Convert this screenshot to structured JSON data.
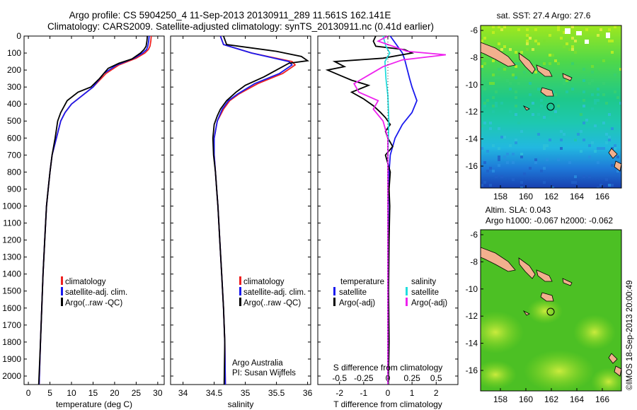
{
  "header": {
    "title_line1": "Argo profile: CS 5904250_4 11-Sep-2013 20130911_289 11.561S 162.141E",
    "title_line2": "Climatology: CARS2009. Satellite-adjusted climatology: synTS_20130911.nc (0.41d earlier)"
  },
  "colors": {
    "climatology": "#ee2222",
    "satellite": "#1a1aee",
    "argo": "#000000",
    "sat_salinity": "#22dddd",
    "argo_salinity": "#ee22ee",
    "land": "#f2b08e"
  },
  "chart_data": [
    {
      "id": "temperature",
      "type": "line",
      "xlabel": "temperature (deg C)",
      "xticks": [
        0,
        5,
        10,
        15,
        20,
        25,
        30
      ],
      "xlim": [
        -1,
        31.5
      ],
      "yticks": [
        0,
        100,
        200,
        300,
        400,
        500,
        600,
        700,
        800,
        900,
        1000,
        1100,
        1200,
        1300,
        1400,
        1500,
        1600,
        1700,
        1800,
        1900,
        2000
      ],
      "ylim": [
        0,
        2050
      ],
      "legend": [
        "climatology",
        "satellite-adj. clim.",
        "Argo(..raw -QC)"
      ],
      "series": [
        {
          "name": "climatology",
          "color": "#ee2222",
          "points": [
            [
              28.5,
              0
            ],
            [
              28.4,
              30
            ],
            [
              28.2,
              60
            ],
            [
              27.8,
              80
            ],
            [
              27,
              100
            ],
            [
              25,
              130
            ],
            [
              21,
              170
            ],
            [
              18,
              220
            ],
            [
              15,
              300
            ],
            [
              12.5,
              350
            ],
            [
              10,
              400
            ],
            [
              8.5,
              450
            ],
            [
              7.5,
              500
            ],
            [
              6.5,
              600
            ],
            [
              5.5,
              700
            ],
            [
              5,
              800
            ],
            [
              4.6,
              900
            ],
            [
              4.2,
              1000
            ],
            [
              3.8,
              1200
            ],
            [
              3.4,
              1400
            ],
            [
              3.1,
              1600
            ],
            [
              2.8,
              1800
            ],
            [
              2.5,
              2050
            ]
          ]
        },
        {
          "name": "satellite-adj. clim.",
          "color": "#1a1aee",
          "points": [
            [
              28,
              0
            ],
            [
              27.9,
              30
            ],
            [
              27.7,
              60
            ],
            [
              27.4,
              80
            ],
            [
              26.5,
              100
            ],
            [
              24.5,
              130
            ],
            [
              20.5,
              170
            ],
            [
              17.5,
              220
            ],
            [
              15,
              300
            ],
            [
              12.5,
              350
            ],
            [
              10,
              400
            ],
            [
              8.5,
              450
            ],
            [
              7.5,
              500
            ],
            [
              6.5,
              600
            ],
            [
              5.5,
              700
            ],
            [
              5,
              800
            ],
            [
              4.6,
              900
            ],
            [
              4.2,
              1000
            ],
            [
              3.8,
              1200
            ],
            [
              3.4,
              1400
            ],
            [
              3.1,
              1600
            ],
            [
              2.8,
              1800
            ],
            [
              2.5,
              2050
            ]
          ]
        },
        {
          "name": "Argo(..raw -QC)",
          "color": "#000000",
          "points": [
            [
              27.6,
              0
            ],
            [
              27.5,
              30
            ],
            [
              27.3,
              60
            ],
            [
              26.8,
              80
            ],
            [
              26,
              100
            ],
            [
              24,
              135
            ],
            [
              21,
              160
            ],
            [
              18.5,
              190
            ],
            [
              16.5,
              250
            ],
            [
              14.5,
              300
            ],
            [
              11.5,
              330
            ],
            [
              9,
              380
            ],
            [
              7.5,
              450
            ],
            [
              6.8,
              500
            ],
            [
              6.2,
              600
            ],
            [
              5.5,
              700
            ],
            [
              5,
              800
            ],
            [
              4.6,
              900
            ],
            [
              4.2,
              1000
            ],
            [
              3.8,
              1200
            ],
            [
              3.4,
              1400
            ],
            [
              3.1,
              1600
            ],
            [
              2.8,
              1800
            ],
            [
              2.4,
              2050
            ]
          ]
        }
      ]
    },
    {
      "id": "salinity",
      "type": "line",
      "xlabel": "salinity",
      "xticks": [
        34,
        34.5,
        35,
        35.5,
        36
      ],
      "xlim": [
        33.8,
        36.05
      ],
      "yticks": [
        0,
        100,
        200,
        300,
        400,
        500,
        600,
        700,
        800,
        900,
        1000,
        1100,
        1200,
        1300,
        1400,
        1500,
        1600,
        1700,
        1800,
        1900,
        2000
      ],
      "ylim": [
        0,
        2050
      ],
      "legend": [
        "climatology",
        "satellite-adj. clim.",
        "Argo(..raw -QC)"
      ],
      "annotation": [
        "Argo Australia",
        "PI: Susan Wijffels"
      ],
      "series": [
        {
          "name": "climatology",
          "color": "#ee2222",
          "points": [
            [
              34.6,
              0
            ],
            [
              34.65,
              50
            ],
            [
              35.1,
              100
            ],
            [
              35.75,
              150
            ],
            [
              35.8,
              170
            ],
            [
              35.6,
              220
            ],
            [
              35.2,
              280
            ],
            [
              34.9,
              340
            ],
            [
              34.75,
              380
            ],
            [
              34.65,
              430
            ],
            [
              34.55,
              500
            ],
            [
              34.5,
              600
            ],
            [
              34.5,
              700
            ],
            [
              34.52,
              800
            ],
            [
              34.54,
              900
            ],
            [
              34.56,
              1000
            ],
            [
              34.59,
              1200
            ],
            [
              34.62,
              1400
            ],
            [
              34.65,
              1600
            ],
            [
              34.67,
              1800
            ],
            [
              34.68,
              2050
            ]
          ]
        },
        {
          "name": "satellite-adj. clim.",
          "color": "#1a1aee",
          "points": [
            [
              34.6,
              0
            ],
            [
              34.65,
              50
            ],
            [
              35.1,
              100
            ],
            [
              35.7,
              150
            ],
            [
              35.75,
              170
            ],
            [
              35.55,
              220
            ],
            [
              35.15,
              280
            ],
            [
              34.88,
              340
            ],
            [
              34.73,
              380
            ],
            [
              34.63,
              430
            ],
            [
              34.55,
              500
            ],
            [
              34.5,
              600
            ],
            [
              34.5,
              700
            ],
            [
              34.52,
              800
            ],
            [
              34.54,
              900
            ],
            [
              34.56,
              1000
            ],
            [
              34.59,
              1200
            ],
            [
              34.62,
              1400
            ],
            [
              34.65,
              1600
            ],
            [
              34.67,
              1800
            ],
            [
              34.68,
              2050
            ]
          ]
        },
        {
          "name": "Argo(..raw -QC)",
          "color": "#000000",
          "points": [
            [
              34.65,
              0
            ],
            [
              34.7,
              50
            ],
            [
              35.5,
              90
            ],
            [
              35.9,
              120
            ],
            [
              36.0,
              145
            ],
            [
              35.7,
              160
            ],
            [
              35.5,
              200
            ],
            [
              35.3,
              240
            ],
            [
              35.0,
              290
            ],
            [
              34.85,
              330
            ],
            [
              34.7,
              380
            ],
            [
              34.6,
              430
            ],
            [
              34.55,
              470
            ],
            [
              34.5,
              520
            ],
            [
              34.48,
              600
            ],
            [
              34.49,
              700
            ],
            [
              34.52,
              800
            ],
            [
              34.54,
              900
            ],
            [
              34.56,
              1000
            ],
            [
              34.59,
              1200
            ],
            [
              34.62,
              1400
            ],
            [
              34.65,
              1600
            ],
            [
              34.67,
              1800
            ],
            [
              34.66,
              2050
            ]
          ]
        }
      ]
    },
    {
      "id": "difference",
      "type": "line",
      "xlabel": "T difference from climatology",
      "top_label": "S difference from climatology",
      "xticks_bottom": [
        -2,
        -1,
        0,
        1,
        2
      ],
      "xticks_top": [
        -0.5,
        -0.25,
        0,
        0.25,
        0.5
      ],
      "xlim": [
        -2.9,
        2.9
      ],
      "ylim": [
        0,
        2050
      ],
      "legend_titles": [
        "temperature",
        "salinity"
      ],
      "legend": [
        "satellite",
        "Argo(-adj)",
        "satellite",
        "Argo(-adj)"
      ],
      "series": [
        {
          "name": "T satellite",
          "color": "#1a1aee",
          "points": [
            [
              0.1,
              0
            ],
            [
              0.4,
              60
            ],
            [
              0.6,
              100
            ],
            [
              0.7,
              140
            ],
            [
              0.9,
              250
            ],
            [
              1.0,
              300
            ],
            [
              1.2,
              380
            ],
            [
              1.0,
              450
            ],
            [
              0.6,
              520
            ],
            [
              0.3,
              600
            ],
            [
              0.1,
              700
            ],
            [
              0.05,
              800
            ],
            [
              0.02,
              1000
            ],
            [
              0.01,
              1500
            ],
            [
              0,
              2050
            ]
          ]
        },
        {
          "name": "T Argo(-adj)",
          "color": "#000000",
          "points": [
            [
              -0.5,
              0
            ],
            [
              -0.6,
              30
            ],
            [
              -0.5,
              60
            ],
            [
              0.7,
              80
            ],
            [
              1.0,
              100
            ],
            [
              -0.2,
              130
            ],
            [
              -2.2,
              150
            ],
            [
              -1.8,
              180
            ],
            [
              -2.5,
              200
            ],
            [
              -2.0,
              230
            ],
            [
              -1.5,
              260
            ],
            [
              -0.8,
              290
            ],
            [
              -1.5,
              330
            ],
            [
              -1.0,
              370
            ],
            [
              -0.6,
              410
            ],
            [
              -0.3,
              450
            ],
            [
              -0.1,
              480
            ],
            [
              0.1,
              520
            ],
            [
              -0.1,
              560
            ],
            [
              0,
              600
            ],
            [
              0.2,
              650
            ],
            [
              -0.1,
              700
            ],
            [
              0.1,
              800
            ],
            [
              0.05,
              900
            ],
            [
              0.08,
              1000
            ],
            [
              0.05,
              1200
            ],
            [
              0.03,
              1500
            ],
            [
              0.05,
              1800
            ],
            [
              0.02,
              2050
            ]
          ]
        },
        {
          "name": "S satellite",
          "color": "#22dddd",
          "points": [
            [
              -0.05,
              0
            ],
            [
              -0.02,
              60
            ],
            [
              0.02,
              100
            ],
            [
              -0.03,
              150
            ],
            [
              -0.02,
              250
            ],
            [
              0,
              350
            ],
            [
              0.01,
              500
            ],
            [
              0,
              700
            ],
            [
              0,
              1000
            ],
            [
              0,
              1500
            ],
            [
              0,
              2050
            ]
          ]
        },
        {
          "name": "S Argo(-adj)",
          "color": "#ee22ee",
          "points": [
            [
              0,
              0
            ],
            [
              -0.1,
              30
            ],
            [
              0.05,
              60
            ],
            [
              0.2,
              90
            ],
            [
              0.6,
              110
            ],
            [
              0.15,
              140
            ],
            [
              -0.05,
              180
            ],
            [
              -0.2,
              230
            ],
            [
              -0.35,
              280
            ],
            [
              -0.3,
              330
            ],
            [
              -0.1,
              380
            ],
            [
              -0.15,
              430
            ],
            [
              -0.05,
              500
            ],
            [
              0,
              600
            ],
            [
              0,
              800
            ],
            [
              0,
              1000
            ],
            [
              0,
              2050
            ]
          ]
        }
      ]
    }
  ],
  "maps": {
    "sst": {
      "title": "sat. SST: 27.4 Argo: 27.6",
      "xticks": [
        "158",
        "160",
        "162",
        "164",
        "166"
      ],
      "yticks": [
        "-6",
        "-8",
        "-10",
        "-12",
        "-14",
        "-16"
      ]
    },
    "sla": {
      "title1": "Altim. SLA: 0.043",
      "title2": "Argo h1000: -0.067 h2000: -0.062",
      "xticks": [
        "158",
        "160",
        "162",
        "164",
        "166"
      ],
      "yticks": [
        "-6",
        "-8",
        "-10",
        "-12",
        "-14",
        "-16"
      ],
      "vertical_label": "©IMOS 18-Sep-2013 20:00:49"
    }
  }
}
